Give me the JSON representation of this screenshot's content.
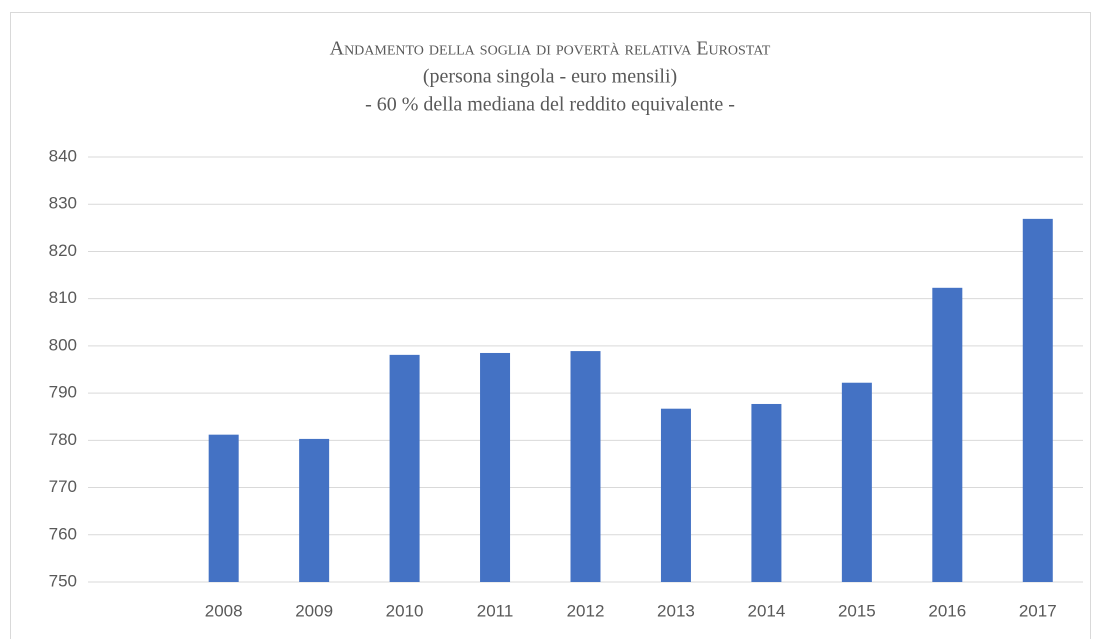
{
  "chart_data": {
    "type": "bar",
    "title": "Andamento della soglia di povertà relativa Eurostat",
    "subtitle": [
      "(persona singola - euro mensili)",
      "- 60 % della mediana del reddito equivalente -"
    ],
    "categories": [
      null,
      "2008",
      "2009",
      "2010",
      "2011",
      "2012",
      "2013",
      "2014",
      "2015",
      "2016",
      "2017"
    ],
    "values": [
      null,
      781.2,
      780.3,
      798.1,
      798.5,
      798.9,
      786.7,
      787.7,
      792.2,
      812.3,
      826.9
    ],
    "color": "#4472c4",
    "ylim": [
      750,
      840
    ],
    "yticks": [
      750,
      760,
      770,
      780,
      790,
      800,
      810,
      820,
      830,
      840
    ],
    "grid": true
  }
}
